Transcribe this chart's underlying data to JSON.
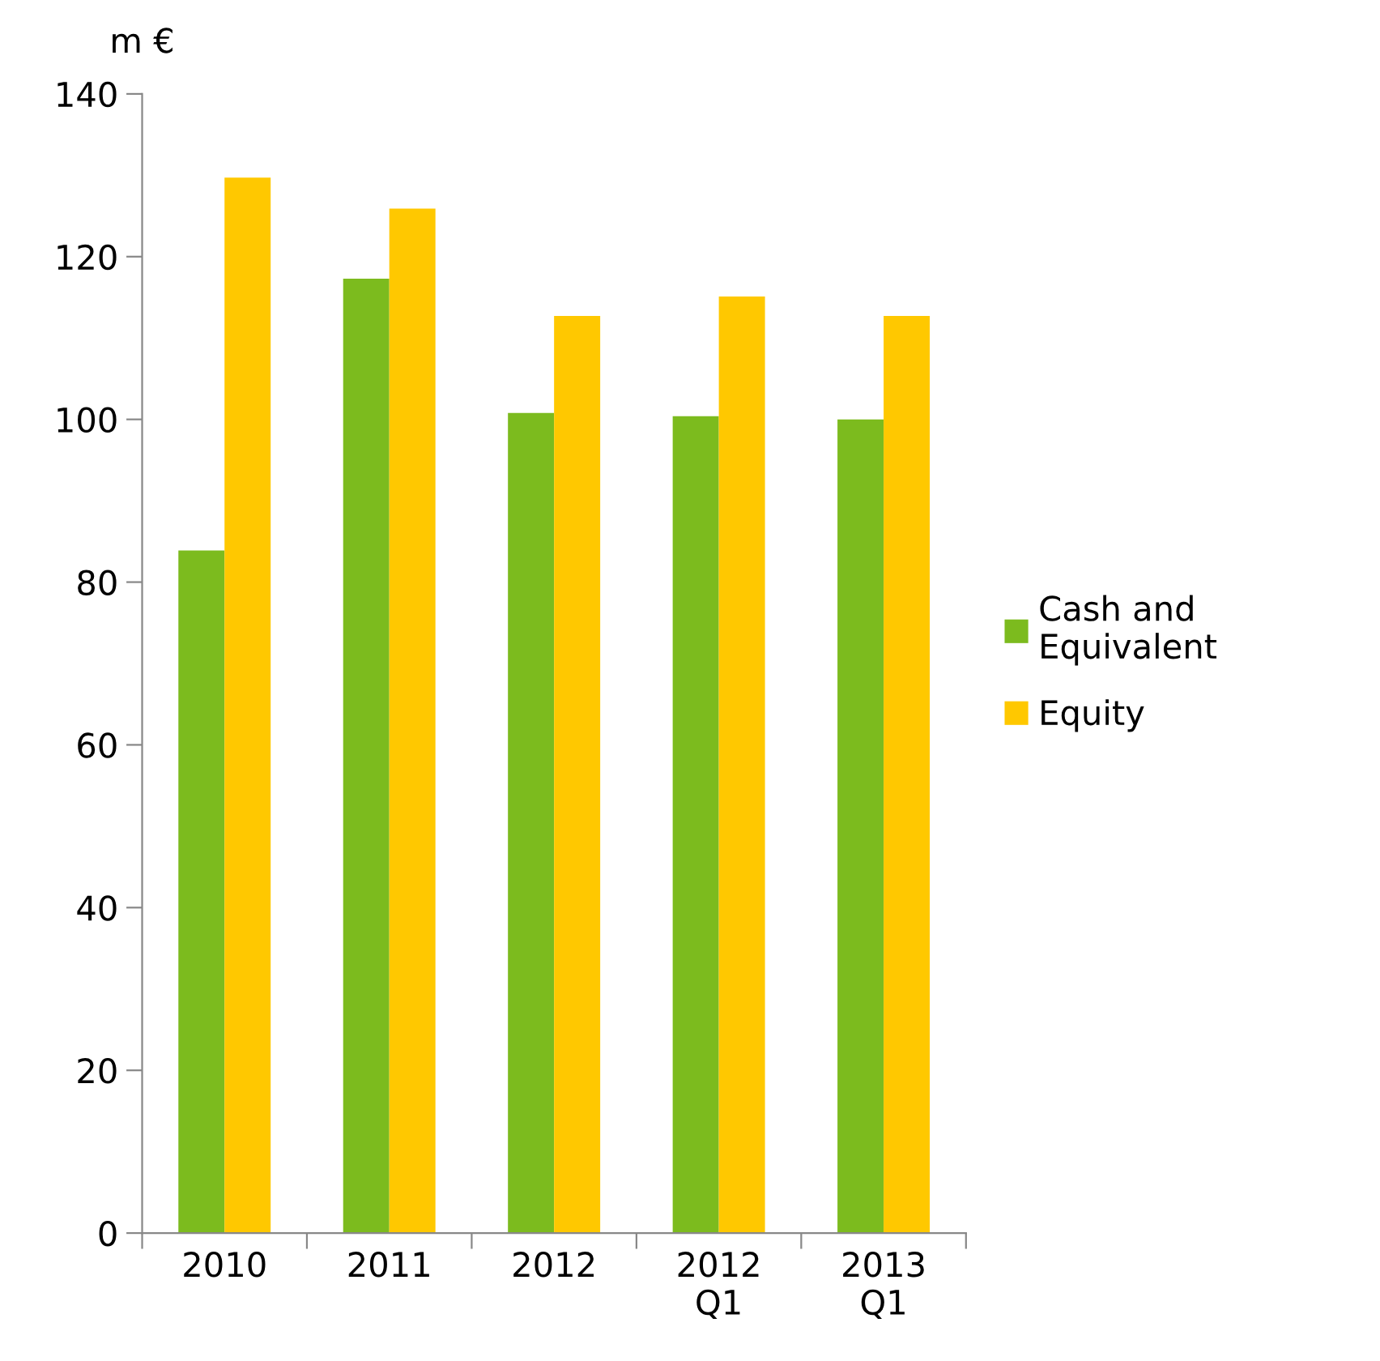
{
  "chart_data": {
    "type": "bar",
    "ylabel": "m €",
    "categories": [
      "2010",
      "2011",
      "2012",
      "2012\nQ1",
      "2013\nQ1"
    ],
    "series": [
      {
        "name": "Cash and\nEquivalent",
        "color": "#7cbb1e",
        "values": [
          83.9,
          117.3,
          100.8,
          100.4,
          100.0
        ]
      },
      {
        "name": "Equity",
        "color": "#ffc800",
        "values": [
          129.7,
          125.9,
          112.7,
          115.1,
          112.7
        ]
      }
    ],
    "ylim": [
      0,
      140
    ],
    "yticks": [
      0,
      20,
      40,
      60,
      80,
      100,
      120,
      140
    ],
    "grid": false,
    "legend": "right"
  }
}
